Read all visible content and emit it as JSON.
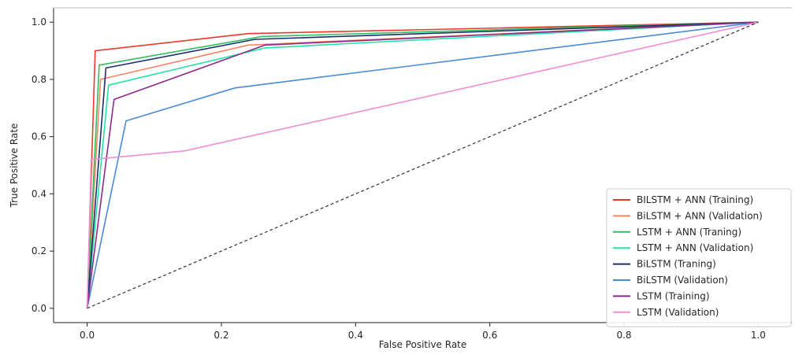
{
  "chart_data": {
    "type": "line",
    "title": "",
    "xlabel": "False Positive Rate",
    "ylabel": "True Positive Rate",
    "xlim": [
      -0.05,
      1.05
    ],
    "ylim": [
      -0.05,
      1.05
    ],
    "xticks": [
      "0.0",
      "0.2",
      "0.4",
      "0.6",
      "0.8",
      "1.0"
    ],
    "yticks": [
      "0.0",
      "0.2",
      "0.4",
      "0.6",
      "0.8",
      "1.0"
    ],
    "grid": false,
    "legend_position": "lower-right",
    "reference_line": {
      "x": [
        0,
        1
      ],
      "y": [
        0,
        1
      ],
      "style": "dashed",
      "color": "#333333"
    },
    "series": [
      {
        "name": "BILSTM + ANN (Training)",
        "color": "#e8392b",
        "x": [
          0,
          0.012,
          0.24,
          1
        ],
        "y": [
          0,
          0.9,
          0.96,
          1
        ]
      },
      {
        "name": "BiLSTM + ANN (Validation)",
        "color": "#fa8466",
        "x": [
          0,
          0.02,
          0.24,
          1
        ],
        "y": [
          0,
          0.8,
          0.92,
          1
        ]
      },
      {
        "name": "LSTM + ANN (Traning)",
        "color": "#2dbf5c",
        "x": [
          0,
          0.018,
          0.26,
          1
        ],
        "y": [
          0,
          0.85,
          0.95,
          1
        ]
      },
      {
        "name": "LSTM + ANN (Validation)",
        "color": "#22e5a5",
        "x": [
          0,
          0.032,
          0.265,
          1
        ],
        "y": [
          0,
          0.78,
          0.91,
          1
        ]
      },
      {
        "name": "BiLSTM (Traning)",
        "color": "#1d2e6b",
        "x": [
          0,
          0.028,
          0.25,
          1
        ],
        "y": [
          0,
          0.84,
          0.94,
          1
        ]
      },
      {
        "name": "BiLSTM (Validation)",
        "color": "#4a8ad6",
        "x": [
          0,
          0.058,
          0.22,
          1
        ],
        "y": [
          0,
          0.655,
          0.77,
          1
        ]
      },
      {
        "name": "LSTM (Training)",
        "color": "#8e2a8c",
        "x": [
          0,
          0.04,
          0.265,
          1
        ],
        "y": [
          0,
          0.73,
          0.92,
          1
        ]
      },
      {
        "name": "LSTM (Validation)",
        "color": "#f08ed6",
        "x": [
          0,
          0.006,
          0.145,
          1
        ],
        "y": [
          0,
          0.52,
          0.55,
          1
        ]
      }
    ]
  }
}
